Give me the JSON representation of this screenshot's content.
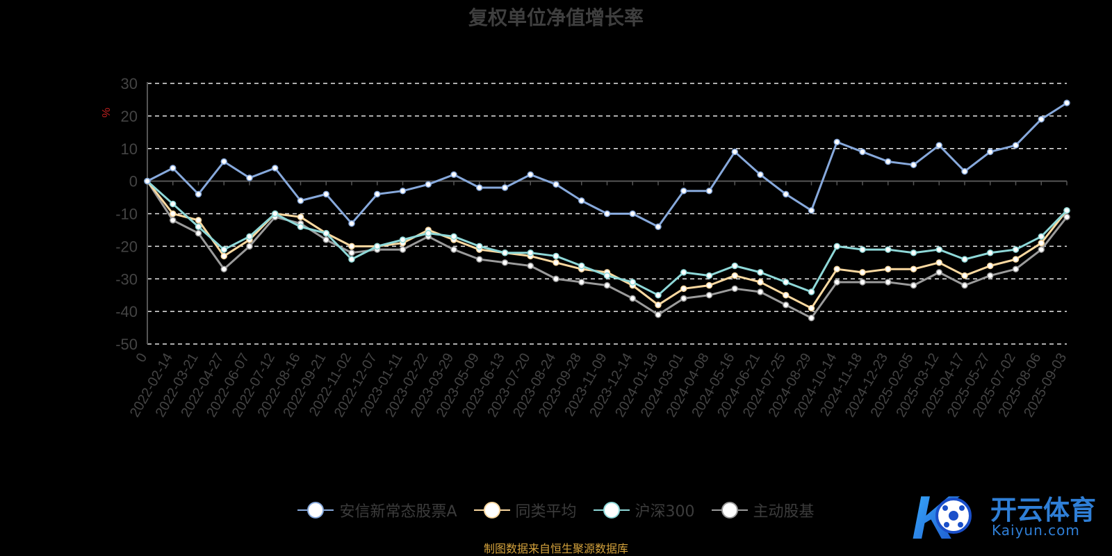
{
  "source_note": "制图数据来自恒生聚源数据库",
  "logo": {
    "brand": "开云体育",
    "url": "Kaiyun.com",
    "mark": "K"
  },
  "chart_data": {
    "type": "line",
    "title": "复权单位净值增长率",
    "ylabel": "%",
    "ylim": [
      -50,
      30
    ],
    "yticks": [
      30,
      20,
      10,
      0,
      -10,
      -20,
      -30,
      -40,
      -50
    ],
    "grid": true,
    "legend_position": "bottom",
    "x": [
      "0",
      "2022-02-14",
      "2022-03-21",
      "2022-04-27",
      "2022-06-07",
      "2022-07-12",
      "2022-08-16",
      "2022-09-21",
      "2022-11-02",
      "2022-12-07",
      "2023-01-11",
      "2023-02-22",
      "2023-03-29",
      "2023-05-09",
      "2023-06-13",
      "2023-07-20",
      "2023-08-24",
      "2023-09-28",
      "2023-11-09",
      "2023-12-14",
      "2024-01-18",
      "2024-03-01",
      "2024-04-08",
      "2024-05-16",
      "2024-06-21",
      "2024-07-25",
      "2024-08-29",
      "2024-10-14",
      "2024-11-18",
      "2024-12-23",
      "2025-02-05",
      "2025-03-12",
      "2025-04-17",
      "2025-05-27",
      "2025-07-02",
      "2025-08-06",
      "2025-09-03"
    ],
    "series": [
      {
        "name": "安信新常态股票A",
        "color": "#87a9dc",
        "values": [
          0,
          4,
          -4,
          6,
          1,
          4,
          -6,
          -4,
          -13,
          -4,
          -3,
          -1,
          2,
          -2,
          -2,
          2,
          -1,
          -6,
          -10,
          -10,
          -14,
          -3,
          -3,
          9,
          2,
          -4,
          -9,
          12,
          9,
          6,
          5,
          11,
          3,
          9,
          11,
          19,
          24
        ]
      },
      {
        "name": "同类平均",
        "color": "#fbd9a0",
        "values": [
          0,
          -10,
          -12,
          -23,
          -18,
          -10,
          -11,
          -16,
          -20,
          -20,
          -19,
          -15,
          -18,
          -21,
          -22,
          -23,
          -25,
          -27,
          -28,
          -32,
          -38,
          -33,
          -32,
          -29,
          -31,
          -35,
          -39,
          -27,
          -28,
          -27,
          -27,
          -25,
          -29,
          -26,
          -24,
          -19,
          -9
        ]
      },
      {
        "name": "沪深300",
        "color": "#8ed8d8",
        "values": [
          0,
          -7,
          -14,
          -21,
          -17,
          -10,
          -14,
          -16,
          -24,
          -20,
          -18,
          -16,
          -17,
          -20,
          -22,
          -22,
          -23,
          -26,
          -29,
          -31,
          -35,
          -28,
          -29,
          -26,
          -28,
          -31,
          -34,
          -20,
          -21,
          -21,
          -22,
          -21,
          -24,
          -22,
          -21,
          -17,
          -9
        ]
      },
      {
        "name": "主动股基",
        "color": "#9b9b9b",
        "values": [
          0,
          -12,
          -16,
          -27,
          -20,
          -11,
          -13,
          -18,
          -22,
          -21,
          -21,
          -17,
          -21,
          -24,
          -25,
          -26,
          -30,
          -31,
          -32,
          -36,
          -41,
          -36,
          -35,
          -33,
          -34,
          -38,
          -42,
          -31,
          -31,
          -31,
          -32,
          -28,
          -32,
          -29,
          -27,
          -21,
          -11
        ]
      }
    ]
  }
}
